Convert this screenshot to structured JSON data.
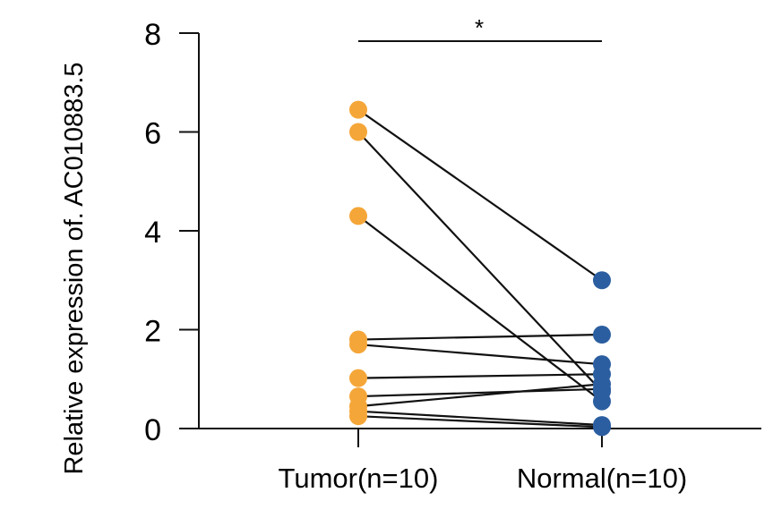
{
  "chart_data": {
    "type": "paired-scatter",
    "ylabel": "Relative expression  of. AC010883.5",
    "ylim": [
      0,
      8
    ],
    "yticks": [
      0,
      2,
      4,
      6,
      8
    ],
    "categories": [
      "Tumor(n=10)",
      "Normal(n=10)"
    ],
    "significance": "*",
    "colors": {
      "tumor": "#F5A638",
      "normal": "#2B5EA0",
      "line": "#111111"
    },
    "pairs": [
      {
        "tumor": 6.45,
        "normal": 3.0
      },
      {
        "tumor": 6.0,
        "normal": 0.75
      },
      {
        "tumor": 4.3,
        "normal": 0.55
      },
      {
        "tumor": 1.8,
        "normal": 1.9
      },
      {
        "tumor": 1.7,
        "normal": 1.3
      },
      {
        "tumor": 1.02,
        "normal": 1.1
      },
      {
        "tumor": 0.65,
        "normal": 0.8
      },
      {
        "tumor": 0.45,
        "normal": 0.9
      },
      {
        "tumor": 0.35,
        "normal": 0.07
      },
      {
        "tumor": 0.25,
        "normal": 0.03
      }
    ]
  }
}
